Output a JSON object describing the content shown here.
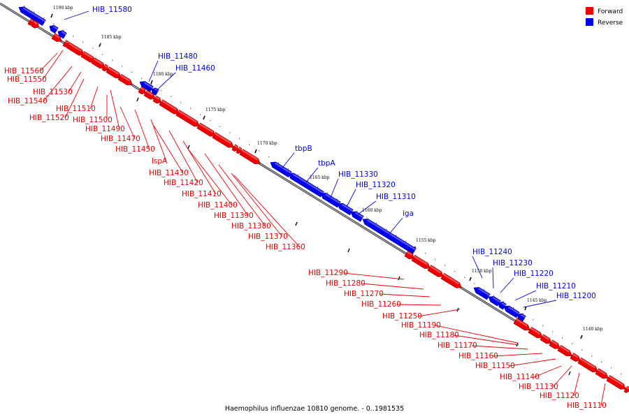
{
  "caption": "Haemophilus influenzae 10810 genome. - 0..1981535",
  "legend": [
    {
      "label": "Forward",
      "color": "#ee0000"
    },
    {
      "label": "Reverse",
      "color": "#0000ee"
    }
  ],
  "colors": {
    "forward": "#ee0000",
    "reverse": "#0000ee",
    "axis": "#808080"
  },
  "ticks": [
    "1190 kbp",
    "1185 kbp",
    "1180 kbp",
    "1175 kbp",
    "1170 kbp",
    "1165 kbp",
    "1160 kbp",
    "1155 kbp",
    "1150 kbp",
    "1145 kbp",
    "1140 kbp"
  ],
  "labels": [
    {
      "text": "HIB_11580",
      "strand": "reverse"
    },
    {
      "text": "HIB_11480",
      "strand": "reverse"
    },
    {
      "text": "HIB_11460",
      "strand": "reverse"
    },
    {
      "text": "HIB_11560",
      "strand": "forward"
    },
    {
      "text": "HIB_11550",
      "strand": "forward"
    },
    {
      "text": "HIB_11530",
      "strand": "forward"
    },
    {
      "text": "HIB_11540",
      "strand": "forward"
    },
    {
      "text": "HIB_11510",
      "strand": "forward"
    },
    {
      "text": "HIB_11520",
      "strand": "forward"
    },
    {
      "text": "HIB_11500",
      "strand": "forward"
    },
    {
      "text": "HIB_11490",
      "strand": "forward"
    },
    {
      "text": "HIB_11470",
      "strand": "forward"
    },
    {
      "text": "HIB_11450",
      "strand": "forward"
    },
    {
      "text": "lspA",
      "strand": "forward"
    },
    {
      "text": "HIB_11430",
      "strand": "forward"
    },
    {
      "text": "HIB_11420",
      "strand": "forward"
    },
    {
      "text": "HIB_11410",
      "strand": "forward"
    },
    {
      "text": "HIB_11400",
      "strand": "forward"
    },
    {
      "text": "HIB_11390",
      "strand": "forward"
    },
    {
      "text": "HIB_11380",
      "strand": "forward"
    },
    {
      "text": "HIB_11370",
      "strand": "forward"
    },
    {
      "text": "HIB_11360",
      "strand": "forward"
    },
    {
      "text": "tbpB",
      "strand": "reverse"
    },
    {
      "text": "tbpA",
      "strand": "reverse"
    },
    {
      "text": "HIB_11330",
      "strand": "reverse"
    },
    {
      "text": "HIB_11320",
      "strand": "reverse"
    },
    {
      "text": "HIB_11310",
      "strand": "reverse"
    },
    {
      "text": "iga",
      "strand": "reverse"
    },
    {
      "text": "HIB_11290",
      "strand": "forward"
    },
    {
      "text": "HIB_11280",
      "strand": "forward"
    },
    {
      "text": "HIB_11270",
      "strand": "forward"
    },
    {
      "text": "HIB_11260",
      "strand": "forward"
    },
    {
      "text": "HIB_11250",
      "strand": "forward"
    },
    {
      "text": "HIB_11190",
      "strand": "forward"
    },
    {
      "text": "HIB_11180",
      "strand": "forward"
    },
    {
      "text": "HIB_11170",
      "strand": "forward"
    },
    {
      "text": "HIB_11160",
      "strand": "forward"
    },
    {
      "text": "HIB_11150",
      "strand": "forward"
    },
    {
      "text": "HIB_11140",
      "strand": "forward"
    },
    {
      "text": "HIB_11130",
      "strand": "forward"
    },
    {
      "text": "HIB_11120",
      "strand": "forward"
    },
    {
      "text": "HIB_11110",
      "strand": "forward"
    },
    {
      "text": "HIB_11240",
      "strand": "reverse"
    },
    {
      "text": "HIB_11230",
      "strand": "reverse"
    },
    {
      "text": "HIB_11220",
      "strand": "reverse"
    },
    {
      "text": "HIB_11210",
      "strand": "reverse"
    },
    {
      "text": "HIB_11200",
      "strand": "reverse"
    }
  ]
}
